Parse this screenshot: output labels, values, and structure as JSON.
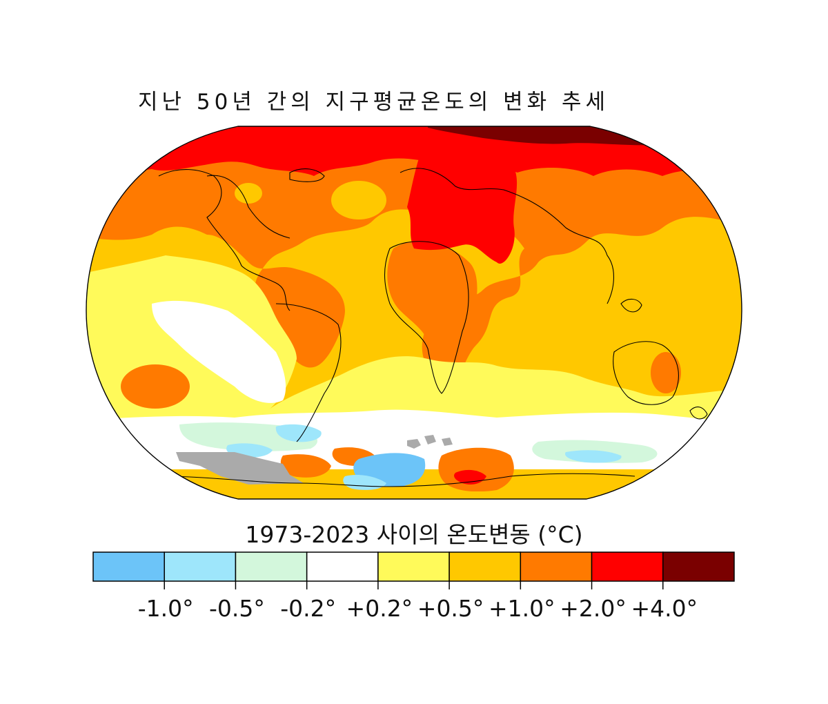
{
  "title": "지난 50년 간의 지구평균온도의 변화 추세",
  "legend": {
    "title": "1973-2023 사이의 온도변동 (°C)",
    "bins": [
      {
        "color": "#6cc4f8"
      },
      {
        "color": "#9ee6fb"
      },
      {
        "color": "#d3f7dc"
      },
      {
        "color": "#ffffff"
      },
      {
        "color": "#fffa5a"
      },
      {
        "color": "#ffc800"
      },
      {
        "color": "#ff7a00"
      },
      {
        "color": "#ff0000"
      },
      {
        "color": "#7a0000"
      }
    ],
    "tick_labels": [
      "-1.0°",
      "-0.5°",
      "-0.2°",
      "+0.2°",
      "+0.5°",
      "+1.0°",
      "+2.0°",
      "+4.0°"
    ]
  },
  "colors": {
    "no_data": "#aaaaaa",
    "coastline": "#000000"
  }
}
